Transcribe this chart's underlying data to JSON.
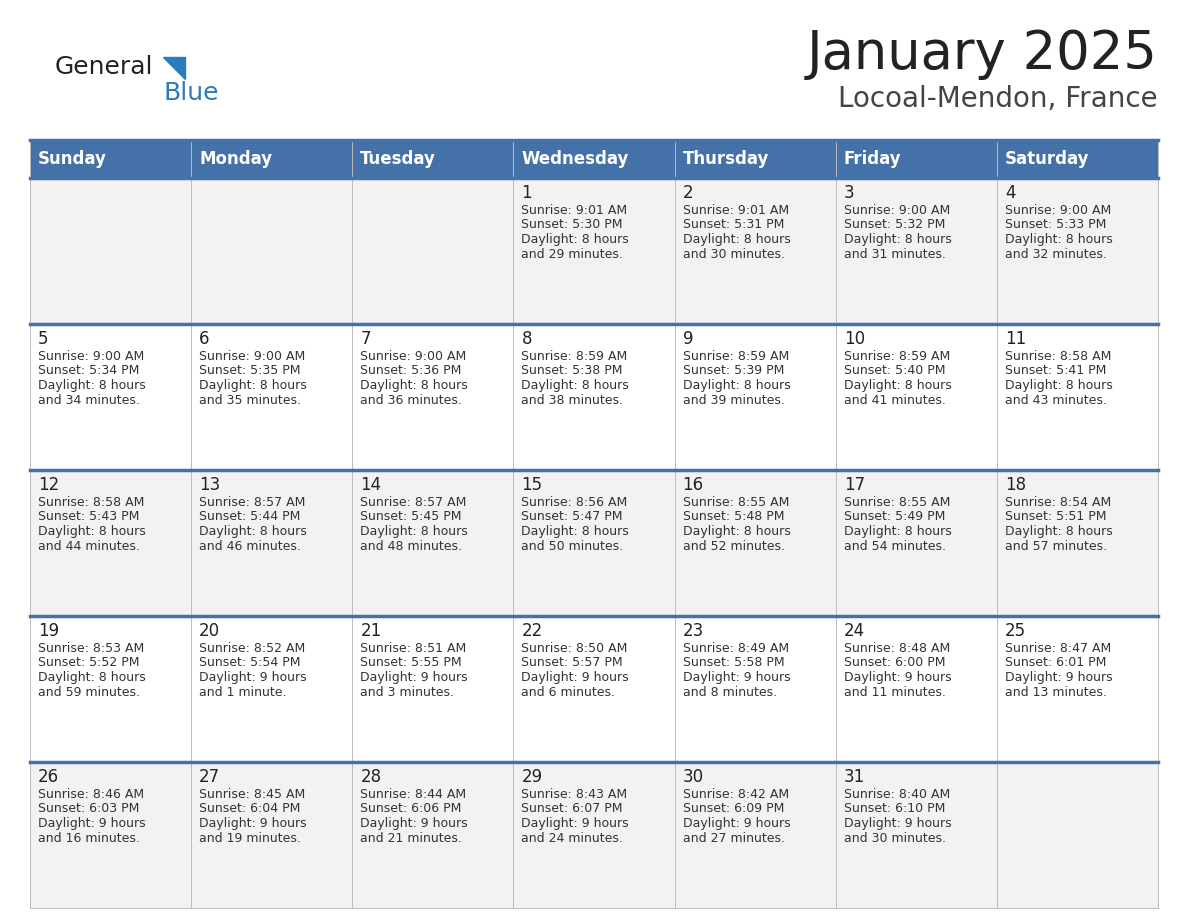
{
  "title": "January 2025",
  "subtitle": "Locoal-Mendon, France",
  "header_bg_color": "#4472a8",
  "header_text_color": "#ffffff",
  "weekdays": [
    "Sunday",
    "Monday",
    "Tuesday",
    "Wednesday",
    "Thursday",
    "Friday",
    "Saturday"
  ],
  "cell_bg_even": "#f2f2f2",
  "cell_bg_odd": "#ffffff",
  "day_number_color": "#222222",
  "info_text_color": "#333333",
  "grid_color": "#bbbbbb",
  "blue_line_color": "#4472a8",
  "title_color": "#222222",
  "subtitle_color": "#444444",
  "logo_general_color": "#222222",
  "logo_blue_color": "#2b7bbf",
  "logo_triangle_color": "#2b7bbf",
  "days": [
    {
      "day": 1,
      "col": 3,
      "row": 0,
      "sunrise": "9:01 AM",
      "sunset": "5:30 PM",
      "daylight": "8 hours and 29 minutes."
    },
    {
      "day": 2,
      "col": 4,
      "row": 0,
      "sunrise": "9:01 AM",
      "sunset": "5:31 PM",
      "daylight": "8 hours and 30 minutes."
    },
    {
      "day": 3,
      "col": 5,
      "row": 0,
      "sunrise": "9:00 AM",
      "sunset": "5:32 PM",
      "daylight": "8 hours and 31 minutes."
    },
    {
      "day": 4,
      "col": 6,
      "row": 0,
      "sunrise": "9:00 AM",
      "sunset": "5:33 PM",
      "daylight": "8 hours and 32 minutes."
    },
    {
      "day": 5,
      "col": 0,
      "row": 1,
      "sunrise": "9:00 AM",
      "sunset": "5:34 PM",
      "daylight": "8 hours and 34 minutes."
    },
    {
      "day": 6,
      "col": 1,
      "row": 1,
      "sunrise": "9:00 AM",
      "sunset": "5:35 PM",
      "daylight": "8 hours and 35 minutes."
    },
    {
      "day": 7,
      "col": 2,
      "row": 1,
      "sunrise": "9:00 AM",
      "sunset": "5:36 PM",
      "daylight": "8 hours and 36 minutes."
    },
    {
      "day": 8,
      "col": 3,
      "row": 1,
      "sunrise": "8:59 AM",
      "sunset": "5:38 PM",
      "daylight": "8 hours and 38 minutes."
    },
    {
      "day": 9,
      "col": 4,
      "row": 1,
      "sunrise": "8:59 AM",
      "sunset": "5:39 PM",
      "daylight": "8 hours and 39 minutes."
    },
    {
      "day": 10,
      "col": 5,
      "row": 1,
      "sunrise": "8:59 AM",
      "sunset": "5:40 PM",
      "daylight": "8 hours and 41 minutes."
    },
    {
      "day": 11,
      "col": 6,
      "row": 1,
      "sunrise": "8:58 AM",
      "sunset": "5:41 PM",
      "daylight": "8 hours and 43 minutes."
    },
    {
      "day": 12,
      "col": 0,
      "row": 2,
      "sunrise": "8:58 AM",
      "sunset": "5:43 PM",
      "daylight": "8 hours and 44 minutes."
    },
    {
      "day": 13,
      "col": 1,
      "row": 2,
      "sunrise": "8:57 AM",
      "sunset": "5:44 PM",
      "daylight": "8 hours and 46 minutes."
    },
    {
      "day": 14,
      "col": 2,
      "row": 2,
      "sunrise": "8:57 AM",
      "sunset": "5:45 PM",
      "daylight": "8 hours and 48 minutes."
    },
    {
      "day": 15,
      "col": 3,
      "row": 2,
      "sunrise": "8:56 AM",
      "sunset": "5:47 PM",
      "daylight": "8 hours and 50 minutes."
    },
    {
      "day": 16,
      "col": 4,
      "row": 2,
      "sunrise": "8:55 AM",
      "sunset": "5:48 PM",
      "daylight": "8 hours and 52 minutes."
    },
    {
      "day": 17,
      "col": 5,
      "row": 2,
      "sunrise": "8:55 AM",
      "sunset": "5:49 PM",
      "daylight": "8 hours and 54 minutes."
    },
    {
      "day": 18,
      "col": 6,
      "row": 2,
      "sunrise": "8:54 AM",
      "sunset": "5:51 PM",
      "daylight": "8 hours and 57 minutes."
    },
    {
      "day": 19,
      "col": 0,
      "row": 3,
      "sunrise": "8:53 AM",
      "sunset": "5:52 PM",
      "daylight": "8 hours and 59 minutes."
    },
    {
      "day": 20,
      "col": 1,
      "row": 3,
      "sunrise": "8:52 AM",
      "sunset": "5:54 PM",
      "daylight": "9 hours and 1 minute."
    },
    {
      "day": 21,
      "col": 2,
      "row": 3,
      "sunrise": "8:51 AM",
      "sunset": "5:55 PM",
      "daylight": "9 hours and 3 minutes."
    },
    {
      "day": 22,
      "col": 3,
      "row": 3,
      "sunrise": "8:50 AM",
      "sunset": "5:57 PM",
      "daylight": "9 hours and 6 minutes."
    },
    {
      "day": 23,
      "col": 4,
      "row": 3,
      "sunrise": "8:49 AM",
      "sunset": "5:58 PM",
      "daylight": "9 hours and 8 minutes."
    },
    {
      "day": 24,
      "col": 5,
      "row": 3,
      "sunrise": "8:48 AM",
      "sunset": "6:00 PM",
      "daylight": "9 hours and 11 minutes."
    },
    {
      "day": 25,
      "col": 6,
      "row": 3,
      "sunrise": "8:47 AM",
      "sunset": "6:01 PM",
      "daylight": "9 hours and 13 minutes."
    },
    {
      "day": 26,
      "col": 0,
      "row": 4,
      "sunrise": "8:46 AM",
      "sunset": "6:03 PM",
      "daylight": "9 hours and 16 minutes."
    },
    {
      "day": 27,
      "col": 1,
      "row": 4,
      "sunrise": "8:45 AM",
      "sunset": "6:04 PM",
      "daylight": "9 hours and 19 minutes."
    },
    {
      "day": 28,
      "col": 2,
      "row": 4,
      "sunrise": "8:44 AM",
      "sunset": "6:06 PM",
      "daylight": "9 hours and 21 minutes."
    },
    {
      "day": 29,
      "col": 3,
      "row": 4,
      "sunrise": "8:43 AM",
      "sunset": "6:07 PM",
      "daylight": "9 hours and 24 minutes."
    },
    {
      "day": 30,
      "col": 4,
      "row": 4,
      "sunrise": "8:42 AM",
      "sunset": "6:09 PM",
      "daylight": "9 hours and 27 minutes."
    },
    {
      "day": 31,
      "col": 5,
      "row": 4,
      "sunrise": "8:40 AM",
      "sunset": "6:10 PM",
      "daylight": "9 hours and 30 minutes."
    }
  ]
}
